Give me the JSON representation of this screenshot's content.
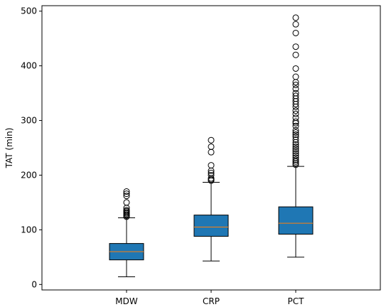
{
  "chart_data": {
    "type": "box",
    "title": "",
    "xlabel": "",
    "ylabel": "TAT (min)",
    "ylim": [
      -10,
      510
    ],
    "yticks": [
      0,
      100,
      200,
      300,
      400,
      500
    ],
    "categories": [
      "MDW",
      "CRP",
      "PCT"
    ],
    "box_color": "#1f77b4",
    "median_color": "#ff7f0e",
    "grid": false,
    "boxes": [
      {
        "name": "MDW",
        "whisker_low": 14,
        "q1": 45,
        "median": 60,
        "q3": 75,
        "whisker_high": 122,
        "outliers": [
          124,
          126,
          128,
          130,
          132,
          134,
          136,
          140,
          150,
          162,
          166,
          170
        ]
      },
      {
        "name": "CRP",
        "whisker_low": 43,
        "q1": 88,
        "median": 105,
        "q3": 127,
        "whisker_high": 187,
        "outliers": [
          190,
          192,
          194,
          200,
          204,
          208,
          218,
          242,
          252,
          264
        ]
      },
      {
        "name": "PCT",
        "whisker_low": 50,
        "q1": 92,
        "median": 112,
        "q3": 142,
        "whisker_high": 216,
        "outliers": [
          219,
          222,
          225,
          228,
          232,
          236,
          240,
          244,
          248,
          252,
          256,
          260,
          265,
          270,
          274,
          278,
          282,
          290,
          295,
          298,
          305,
          312,
          318,
          325,
          330,
          335,
          340,
          345,
          350,
          358,
          365,
          370,
          380,
          395,
          420,
          435,
          460,
          476,
          488
        ]
      }
    ]
  }
}
